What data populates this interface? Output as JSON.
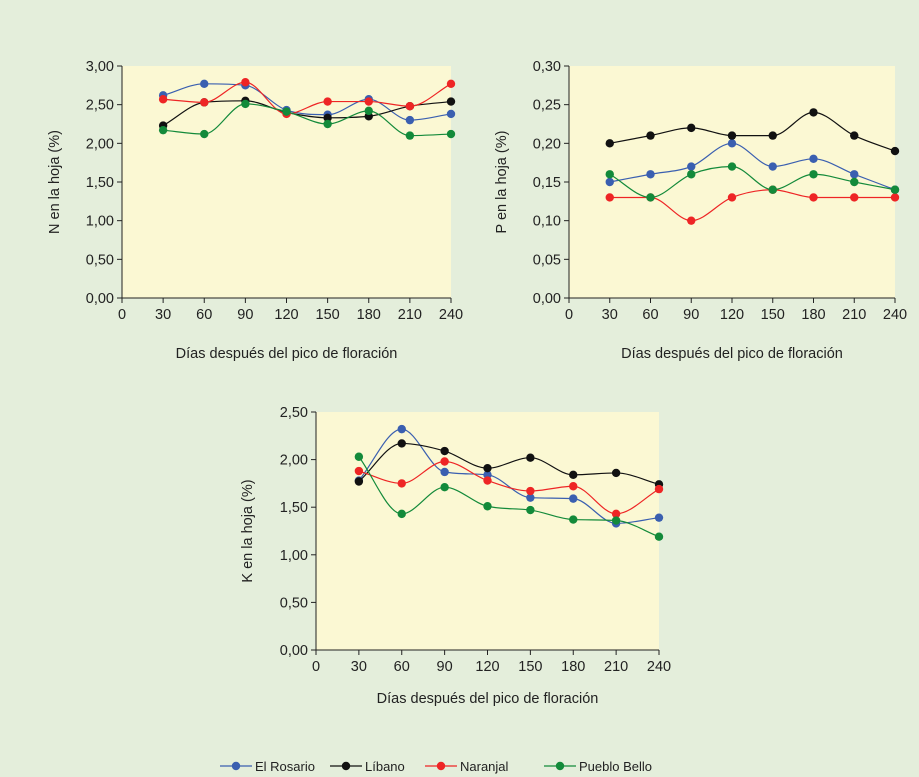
{
  "chart_data": [
    {
      "type": "line",
      "x": [
        30,
        60,
        90,
        120,
        150,
        180,
        210,
        240
      ],
      "xlim": [
        0,
        240
      ],
      "xticks": [
        "0",
        "30",
        "60",
        "90",
        "120",
        "150",
        "180",
        "210",
        "240"
      ],
      "ylim": [
        0,
        3
      ],
      "yticks": [
        "0,00",
        "0,50",
        "1,00",
        "1,50",
        "2,00",
        "2,50",
        "3,00"
      ],
      "xlabel": "Días después del pico de floración",
      "ylabel": "N en la hoja (%)",
      "series": [
        {
          "name": "El Rosario",
          "values": [
            2.62,
            2.77,
            2.75,
            2.43,
            2.37,
            2.57,
            2.3,
            2.38
          ]
        },
        {
          "name": "Líbano",
          "values": [
            2.23,
            2.53,
            2.55,
            2.4,
            2.33,
            2.35,
            2.48,
            2.54
          ]
        },
        {
          "name": "Naranjal",
          "values": [
            2.57,
            2.53,
            2.79,
            2.38,
            2.54,
            2.54,
            2.48,
            2.77
          ]
        },
        {
          "name": "Pueblo Bello",
          "values": [
            2.17,
            2.12,
            2.51,
            2.41,
            2.25,
            2.42,
            2.1,
            2.12
          ]
        }
      ]
    },
    {
      "type": "line",
      "x": [
        30,
        60,
        90,
        120,
        150,
        180,
        210,
        240
      ],
      "xlim": [
        0,
        240
      ],
      "xticks": [
        "0",
        "30",
        "60",
        "90",
        "120",
        "150",
        "180",
        "210",
        "240"
      ],
      "ylim": [
        0,
        0.3
      ],
      "yticks": [
        "0,00",
        "0,05",
        "0,10",
        "0,15",
        "0,20",
        "0,25",
        "0,30"
      ],
      "xlabel": "Días después del pico de floración",
      "ylabel": "P en la hoja (%)",
      "series": [
        {
          "name": "El Rosario",
          "values": [
            0.15,
            0.16,
            0.17,
            0.2,
            0.17,
            0.18,
            0.16,
            0.14
          ]
        },
        {
          "name": "Líbano",
          "values": [
            0.2,
            0.21,
            0.22,
            0.21,
            0.21,
            0.24,
            0.21,
            0.19
          ]
        },
        {
          "name": "Naranjal",
          "values": [
            0.13,
            0.13,
            0.1,
            0.13,
            0.14,
            0.13,
            0.13,
            0.13
          ]
        },
        {
          "name": "Pueblo Bello",
          "values": [
            0.16,
            0.13,
            0.16,
            0.17,
            0.14,
            0.16,
            0.15,
            0.14
          ]
        }
      ]
    },
    {
      "type": "line",
      "x": [
        30,
        60,
        90,
        120,
        150,
        180,
        210,
        240
      ],
      "xlim": [
        0,
        240
      ],
      "xticks": [
        "0",
        "30",
        "60",
        "90",
        "120",
        "150",
        "180",
        "210",
        "240"
      ],
      "ylim": [
        0,
        2.5
      ],
      "yticks": [
        "0,00",
        "0,50",
        "1,00",
        "1,50",
        "2,00",
        "2,50"
      ],
      "xlabel": "Días después del pico de floración",
      "ylabel": "K en la hoja (%)",
      "series": [
        {
          "name": "El Rosario",
          "values": [
            1.78,
            2.32,
            1.87,
            1.84,
            1.6,
            1.59,
            1.33,
            1.39
          ]
        },
        {
          "name": "Líbano",
          "values": [
            1.77,
            2.17,
            2.09,
            1.91,
            2.02,
            1.84,
            1.86,
            1.74
          ]
        },
        {
          "name": "Naranjal",
          "values": [
            1.88,
            1.75,
            1.98,
            1.78,
            1.67,
            1.72,
            1.43,
            1.69
          ]
        },
        {
          "name": "Pueblo Bello",
          "values": [
            2.03,
            1.43,
            1.71,
            1.51,
            1.47,
            1.37,
            1.36,
            1.19
          ]
        }
      ]
    }
  ],
  "legend": [
    {
      "name": "El Rosario",
      "color": "#3a5fb0"
    },
    {
      "name": "Líbano",
      "color": "#111111"
    },
    {
      "name": "Naranjal",
      "color": "#ee2525"
    },
    {
      "name": "Pueblo Bello",
      "color": "#138a3a"
    }
  ],
  "colors": {
    "background": "#e4eedb",
    "plot_area": "#fbf8d3"
  }
}
